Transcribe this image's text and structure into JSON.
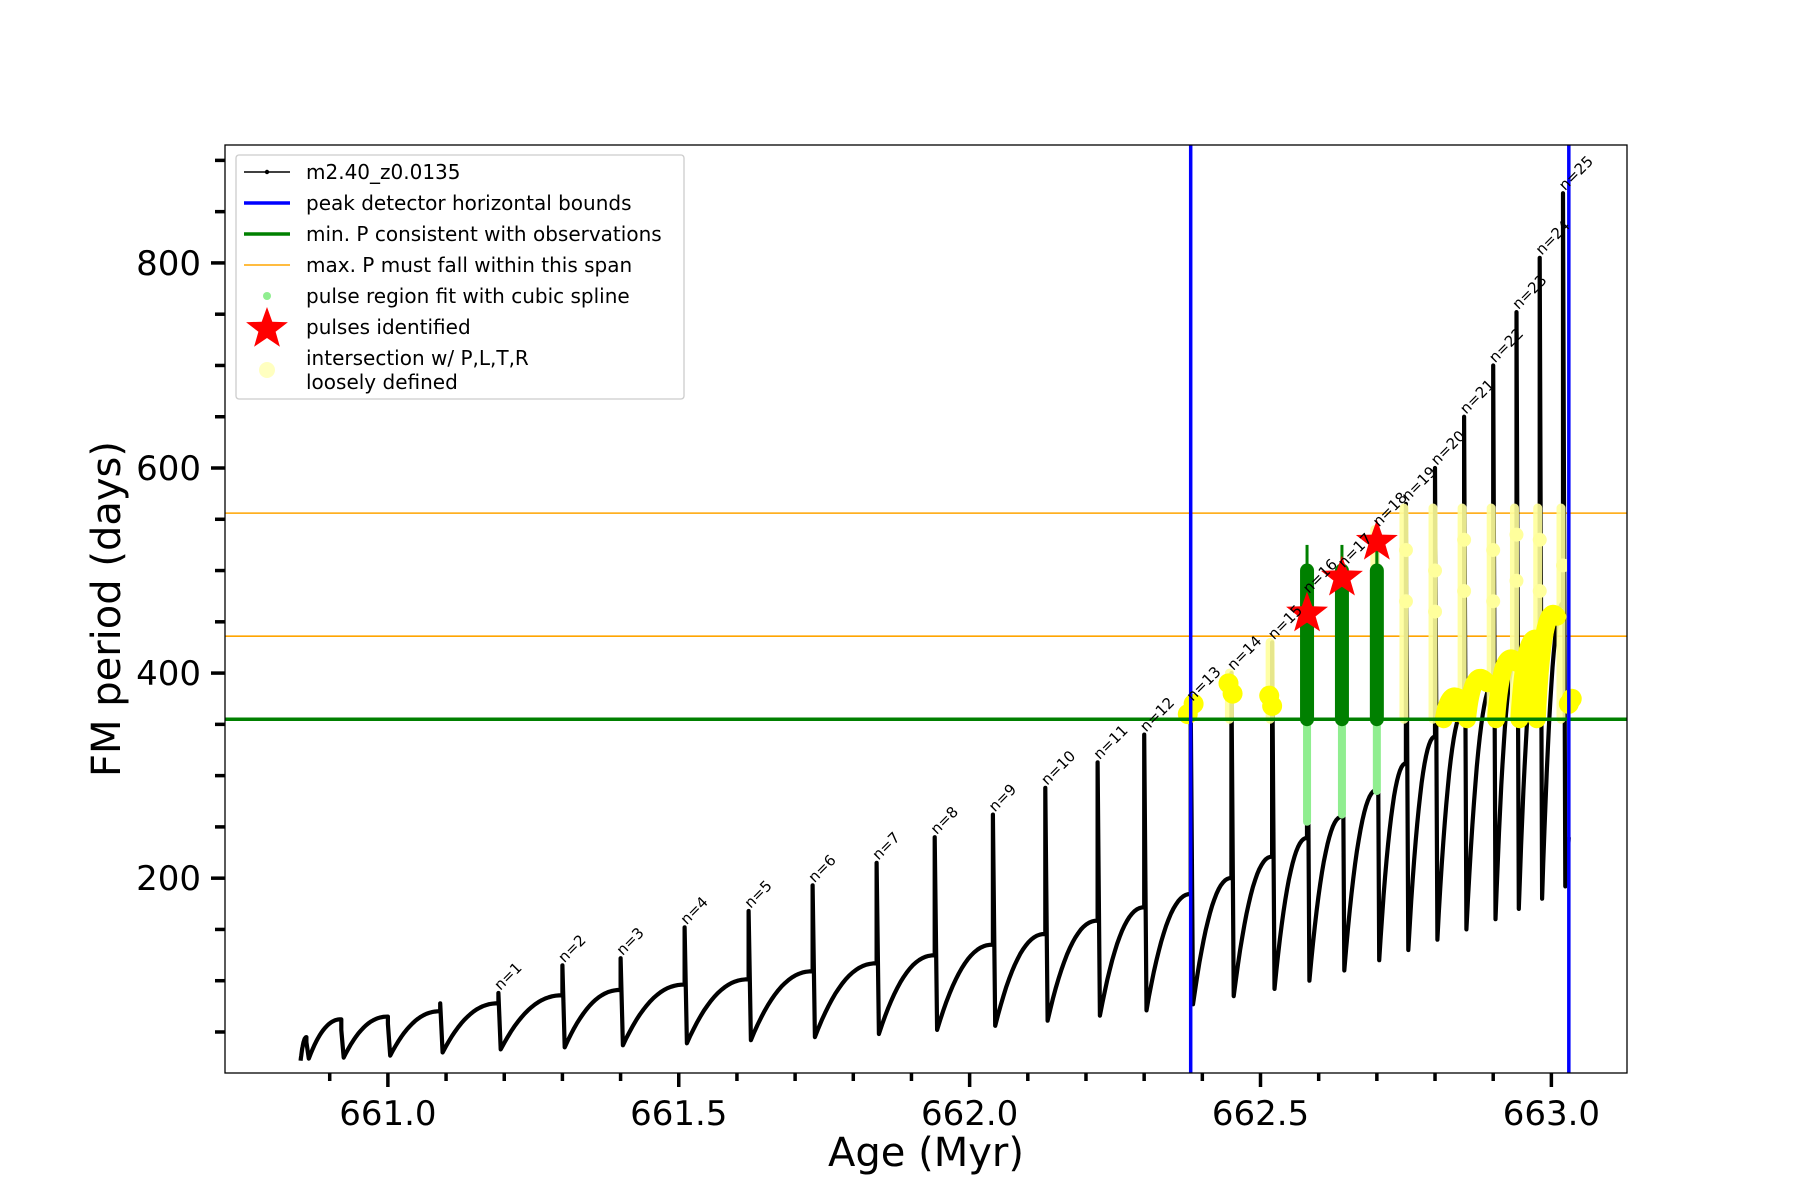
{
  "chart_data": {
    "type": "line",
    "title": "",
    "xlabel": "Age (Myr)",
    "ylabel": "FM period (days)",
    "xlim": [
      660.72,
      663.13
    ],
    "ylim": [
      10,
      915
    ],
    "xticks": [
      661.0,
      661.5,
      662.0,
      662.5,
      663.0
    ],
    "xtick_labels": [
      "661.0",
      "661.5",
      "662.0",
      "662.5",
      "663.0"
    ],
    "yticks": [
      200,
      400,
      600,
      800
    ],
    "ytick_labels": [
      "200",
      "400",
      "600",
      "800"
    ],
    "grid": false,
    "legend_position": "upper-left",
    "legend": [
      {
        "label": "m2.40_z0.0135",
        "kind": "line-marker",
        "color": "#000000"
      },
      {
        "label": "peak detector horizontal bounds",
        "kind": "line",
        "color": "#0000ff"
      },
      {
        "label": "min. P consistent with observations",
        "kind": "line",
        "color": "#008000"
      },
      {
        "label": "max. P must fall within this span",
        "kind": "thin-line",
        "color": "#ffa500"
      },
      {
        "label": "pulse region fit with cubic spline",
        "kind": "dot",
        "color": "#90ee90"
      },
      {
        "label": "pulses identified",
        "kind": "star",
        "color": "#ff0000"
      },
      {
        "label": "intersection w/ P,L,T,R\nloosely defined",
        "kind": "big-dot",
        "color": "#ffffc0"
      }
    ],
    "vertical_bounds": [
      662.38,
      663.03
    ],
    "min_period": 355,
    "max_period_span": [
      436,
      556
    ],
    "pulses": [
      {
        "label": "n=1",
        "age": 661.19,
        "trough": 33,
        "peak": 88
      },
      {
        "label": "n=2",
        "age": 661.3,
        "trough": 35,
        "peak": 115
      },
      {
        "label": "n=3",
        "age": 661.4,
        "trough": 37,
        "peak": 122
      },
      {
        "label": "n=4",
        "age": 661.51,
        "trough": 39,
        "peak": 152
      },
      {
        "label": "n=5",
        "age": 661.62,
        "trough": 42,
        "peak": 168
      },
      {
        "label": "n=6",
        "age": 661.73,
        "trough": 45,
        "peak": 193
      },
      {
        "label": "n=7",
        "age": 661.84,
        "trough": 48,
        "peak": 215
      },
      {
        "label": "n=8",
        "age": 661.94,
        "trough": 52,
        "peak": 240
      },
      {
        "label": "n=9",
        "age": 662.04,
        "trough": 56,
        "peak": 262
      },
      {
        "label": "n=10",
        "age": 662.13,
        "trough": 61,
        "peak": 288
      },
      {
        "label": "n=11",
        "age": 662.22,
        "trough": 66,
        "peak": 313
      },
      {
        "label": "n=12",
        "age": 662.3,
        "trough": 71,
        "peak": 340
      },
      {
        "label": "n=13",
        "age": 662.38,
        "trough": 77,
        "peak": 370
      },
      {
        "label": "n=14",
        "age": 662.45,
        "trough": 85,
        "peak": 400
      },
      {
        "label": "n=15",
        "age": 662.52,
        "trough": 92,
        "peak": 430
      },
      {
        "label": "n=16",
        "age": 662.58,
        "trough": 100,
        "peak": 475
      },
      {
        "label": "n=17",
        "age": 662.64,
        "trough": 110,
        "peak": 500
      },
      {
        "label": "n=18",
        "age": 662.7,
        "trough": 120,
        "peak": 540
      },
      {
        "label": "n=19",
        "age": 662.75,
        "trough": 130,
        "peak": 565
      },
      {
        "label": "n=20",
        "age": 662.8,
        "trough": 140,
        "peak": 600
      },
      {
        "label": "n=21",
        "age": 662.85,
        "trough": 150,
        "peak": 650
      },
      {
        "label": "n=22",
        "age": 662.9,
        "trough": 160,
        "peak": 700
      },
      {
        "label": "n=23",
        "age": 662.94,
        "trough": 170,
        "peak": 752
      },
      {
        "label": "n=24",
        "age": 662.98,
        "trough": 180,
        "peak": 805
      },
      {
        "label": "n=25",
        "age": 663.02,
        "trough": 192,
        "peak": 868
      }
    ],
    "early_pulses": [
      {
        "age": 660.86,
        "trough": 24,
        "peak": 40
      },
      {
        "age": 660.92,
        "trough": 25,
        "peak": 52
      },
      {
        "age": 661.0,
        "trough": 27,
        "peak": 58
      },
      {
        "age": 661.09,
        "trough": 30,
        "peak": 78
      }
    ],
    "start_age": 660.85,
    "start_period": 22,
    "identified_pulses": [
      {
        "age": 662.58,
        "period": 458
      },
      {
        "age": 662.64,
        "period": 493
      },
      {
        "age": 662.7,
        "period": 528
      }
    ],
    "spline_fit_pulses": [
      {
        "age": 662.58,
        "low": 255,
        "high": 500
      },
      {
        "age": 662.64,
        "low": 262,
        "high": 500
      },
      {
        "age": 662.7,
        "low": 285,
        "high": 500
      }
    ]
  }
}
